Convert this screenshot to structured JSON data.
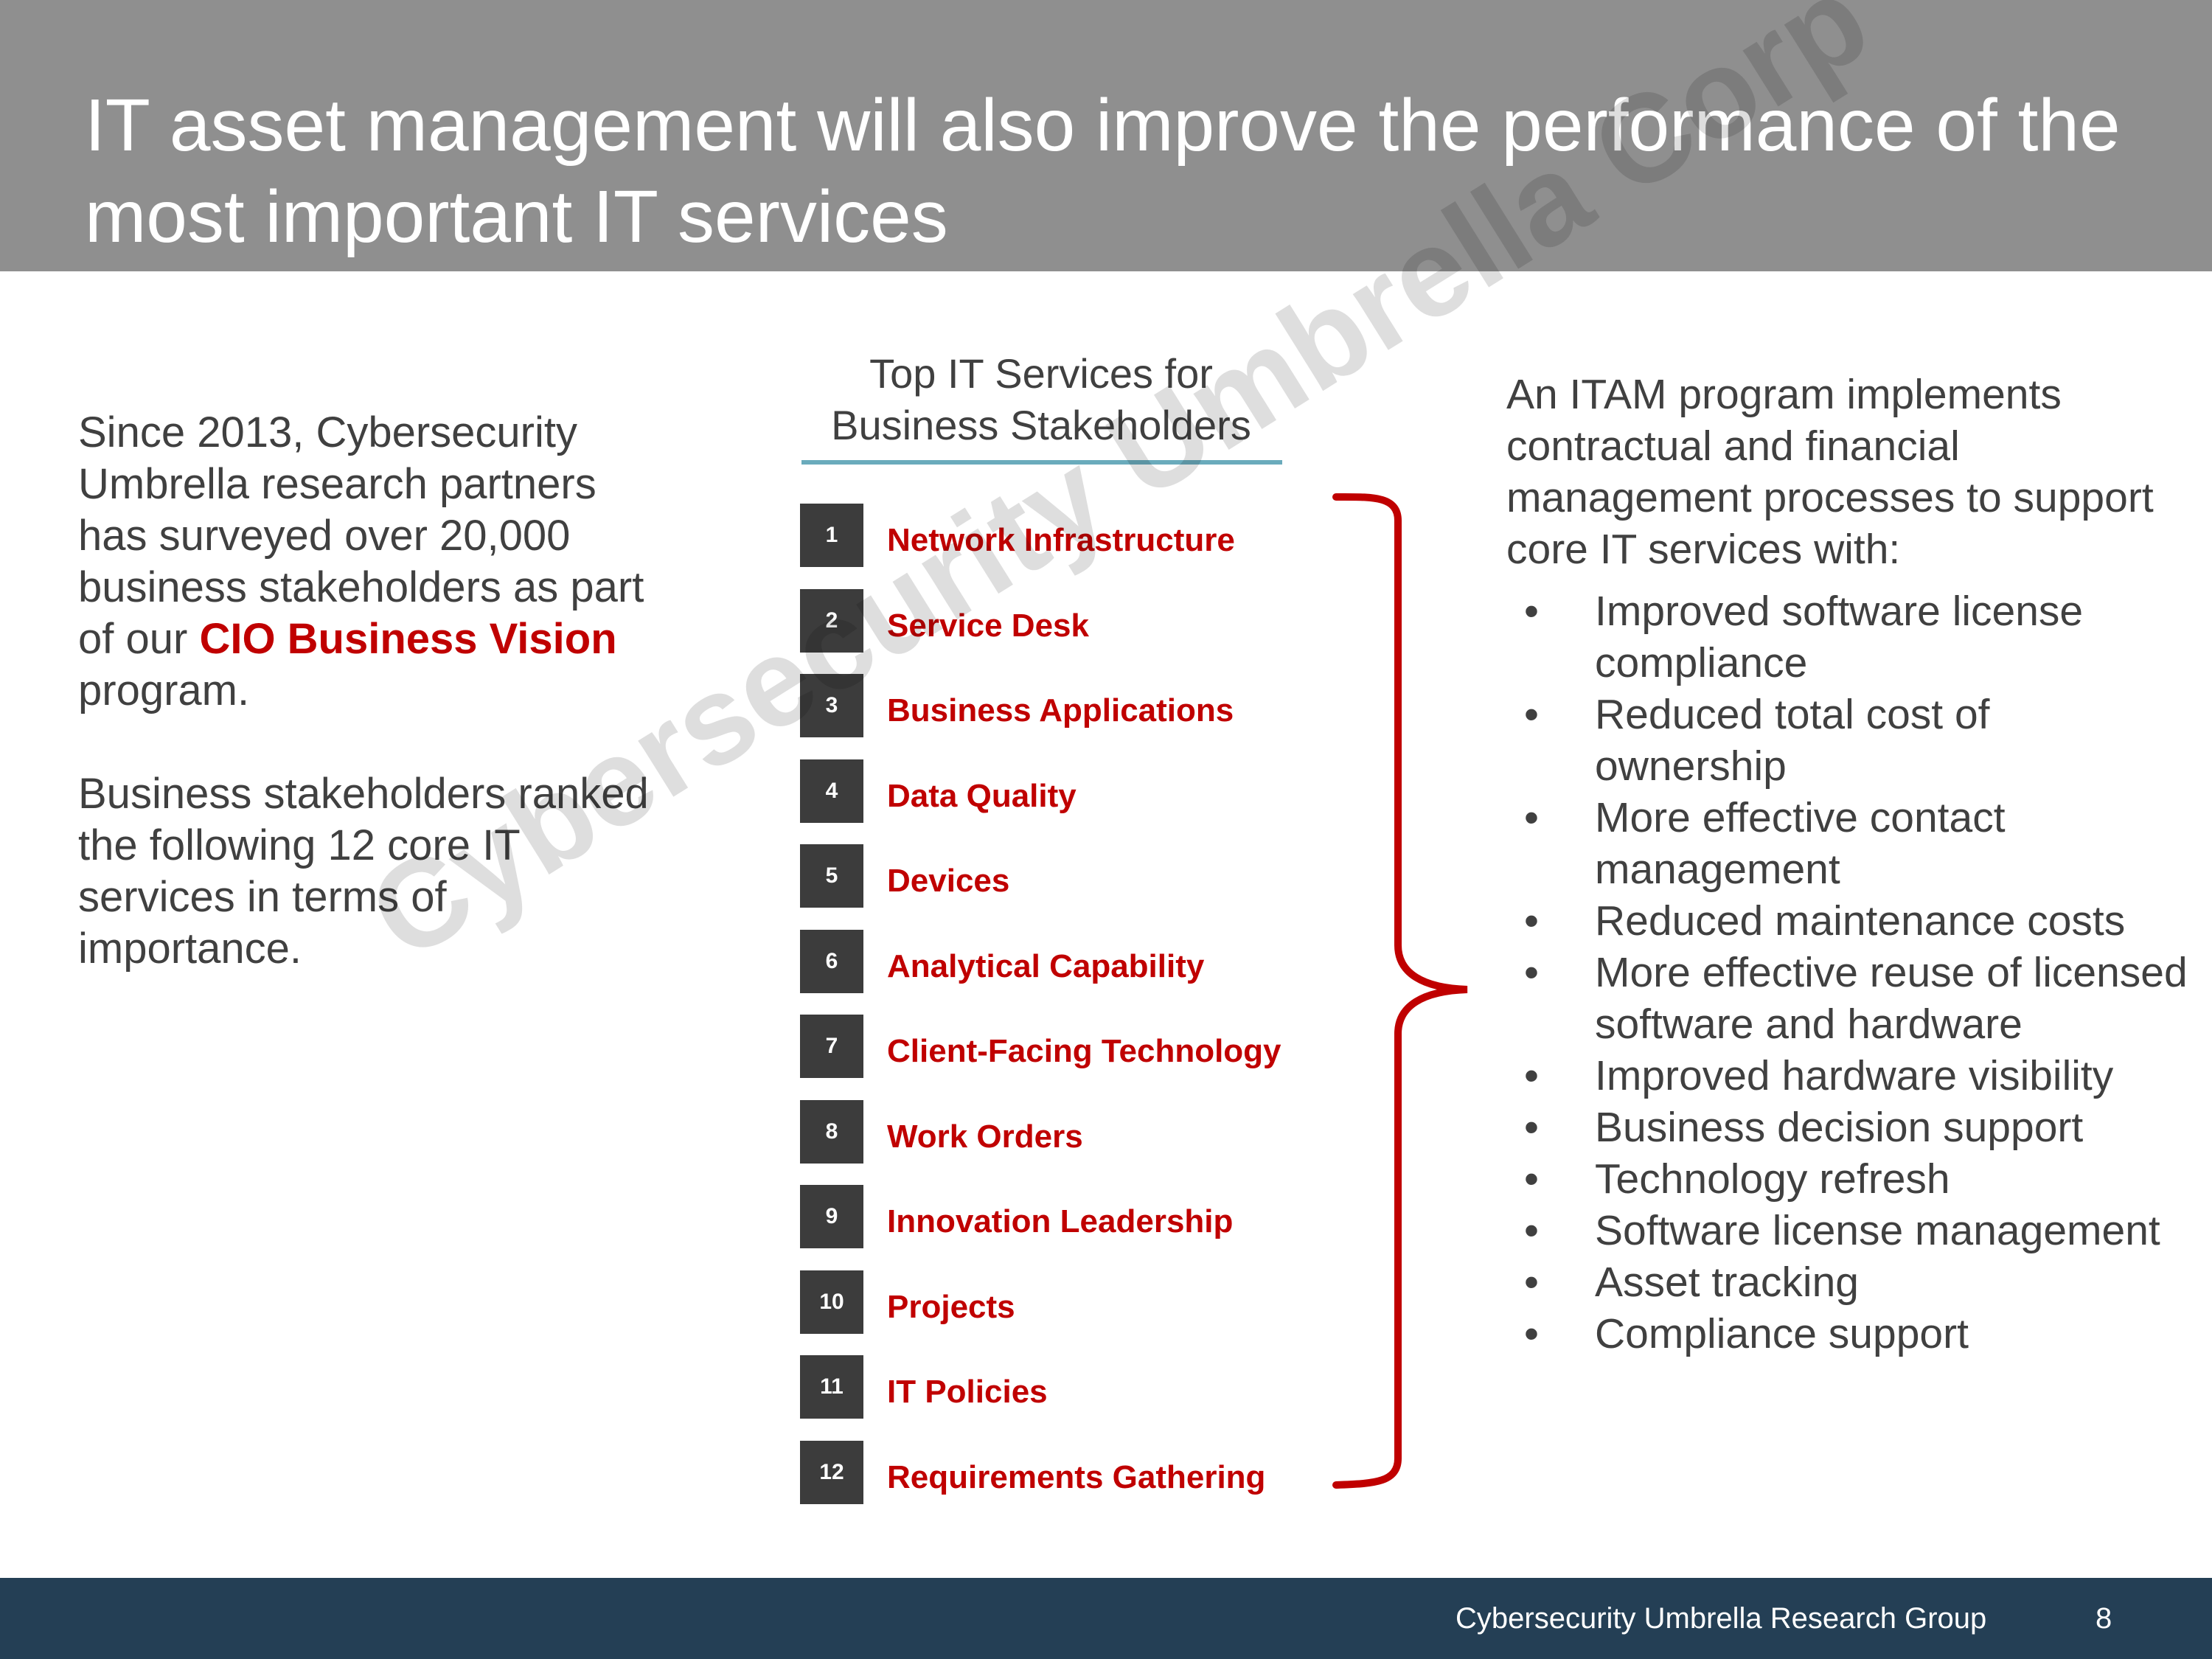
{
  "header": {
    "title": "IT asset management will also improve the performance of the most important IT services"
  },
  "left": {
    "para1_start": "Since 2013, Cybersecurity Umbrella research partners has surveyed over 20,000 business stakeholders as part of our ",
    "para1_highlight": "CIO Business Vision",
    "para1_end": " program.",
    "para2": "Business stakeholders ranked the following 12 core IT services in terms of importance."
  },
  "services": {
    "title": "Top IT Services for Business Stakeholders",
    "items": [
      {
        "rank": "1",
        "label": "Network Infrastructure"
      },
      {
        "rank": "2",
        "label": "Service Desk"
      },
      {
        "rank": "3",
        "label": "Business Applications"
      },
      {
        "rank": "4",
        "label": "Data Quality"
      },
      {
        "rank": "5",
        "label": "Devices"
      },
      {
        "rank": "6",
        "label": "Analytical Capability"
      },
      {
        "rank": "7",
        "label": "Client-Facing Technology"
      },
      {
        "rank": "8",
        "label": "Work Orders"
      },
      {
        "rank": "9",
        "label": "Innovation Leadership"
      },
      {
        "rank": "10",
        "label": "Projects"
      },
      {
        "rank": "11",
        "label": "IT Policies"
      },
      {
        "rank": "12",
        "label": "Requirements Gathering"
      }
    ]
  },
  "right": {
    "intro": "An ITAM program implements contractual and financial management processes to support core IT services with:",
    "bullets": [
      "Improved software license compliance",
      "Reduced total cost of ownership",
      "More effective contact management",
      "Reduced maintenance costs",
      "More effective reuse of licensed software and hardware",
      "Improved hardware visibility",
      "Business decision support",
      "Technology refresh",
      "Software license management",
      "Asset tracking",
      "Compliance support"
    ],
    "bullet_char": "•"
  },
  "watermark": "Cybersecurity Umbrella Corp™",
  "footer": {
    "org": "Cybersecurity Umbrella Research Group",
    "page": "8"
  },
  "colors": {
    "header_bg": "#8f8f8f",
    "accent_red": "#c00000",
    "footer_bg": "#243f55",
    "rank_box": "#3c3c3c",
    "rule": "#6aabbc"
  }
}
